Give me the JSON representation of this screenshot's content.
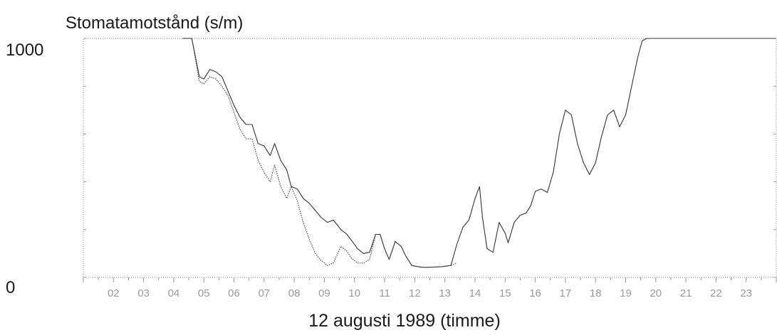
{
  "chart_data": {
    "type": "line",
    "ylabel": "Stomatamotstånd (s/m)",
    "xlabel": "12 augusti 1989 (timme)",
    "ylim": [
      0,
      1000
    ],
    "xlim": [
      1,
      24
    ],
    "y_tick_labels": [
      {
        "value": 1000,
        "label": "1000"
      },
      {
        "value": 0,
        "label": "0"
      }
    ],
    "x_tick_labels": [
      "02",
      "03",
      "04",
      "05",
      "06",
      "07",
      "08",
      "09",
      "10",
      "11",
      "12",
      "13",
      "14",
      "15",
      "16",
      "17",
      "18",
      "19",
      "20",
      "21",
      "22",
      "23"
    ],
    "grid": false,
    "series": [
      {
        "style": "solid",
        "color": "#333333",
        "x": [
          4.3,
          4.6,
          4.85,
          5.0,
          5.2,
          5.4,
          5.6,
          5.8,
          6.0,
          6.2,
          6.4,
          6.6,
          6.8,
          7.0,
          7.2,
          7.35,
          7.55,
          7.75,
          7.9,
          8.1,
          8.3,
          8.5,
          8.7,
          8.9,
          9.1,
          9.3,
          9.55,
          9.75,
          9.9,
          10.1,
          10.3,
          10.5,
          10.7,
          10.85,
          11.0,
          11.15,
          11.35,
          11.55,
          11.7,
          11.9,
          12.1,
          12.3,
          12.6,
          12.9,
          13.2,
          13.4,
          13.6,
          13.8,
          14.0,
          14.15,
          14.25,
          14.4,
          14.6,
          14.8,
          15.0,
          15.1,
          15.3,
          15.5,
          15.7,
          15.85,
          16.0,
          16.2,
          16.4,
          16.6,
          16.8,
          17.0,
          17.2,
          17.4,
          17.6,
          17.8,
          18.0,
          18.2,
          18.4,
          18.6,
          18.8,
          19.0,
          19.2,
          19.4,
          19.55,
          19.7,
          20.0,
          24.0
        ],
        "y": [
          1000,
          1000,
          840,
          830,
          870,
          860,
          840,
          780,
          720,
          670,
          640,
          640,
          560,
          550,
          510,
          560,
          490,
          450,
          380,
          370,
          330,
          310,
          280,
          250,
          230,
          240,
          200,
          180,
          155,
          120,
          100,
          105,
          180,
          180,
          120,
          75,
          150,
          130,
          90,
          50,
          45,
          42,
          43,
          45,
          50,
          140,
          210,
          240,
          330,
          380,
          250,
          120,
          105,
          230,
          185,
          145,
          230,
          260,
          270,
          300,
          360,
          370,
          355,
          440,
          600,
          700,
          680,
          560,
          480,
          430,
          480,
          590,
          680,
          700,
          630,
          680,
          800,
          920,
          990,
          1000,
          1000,
          1000
        ]
      },
      {
        "style": "dotted",
        "color": "#4a4a4a",
        "x": [
          4.3,
          4.6,
          4.85,
          5.0,
          5.2,
          5.4,
          5.6,
          5.8,
          6.0,
          6.2,
          6.4,
          6.6,
          6.8,
          7.0,
          7.2,
          7.35,
          7.55,
          7.75,
          7.9,
          8.1,
          8.3,
          8.5,
          8.7,
          8.9,
          9.1,
          9.3,
          9.55,
          9.75,
          9.9,
          10.1,
          10.3,
          10.5,
          10.7,
          10.85,
          11.0,
          11.15,
          11.35,
          11.55,
          11.7,
          11.9,
          12.1,
          12.3,
          12.6,
          12.9,
          13.2,
          13.4
        ],
        "y": [
          1000,
          1000,
          820,
          810,
          840,
          830,
          800,
          760,
          690,
          620,
          580,
          580,
          490,
          440,
          400,
          470,
          380,
          330,
          380,
          320,
          230,
          160,
          100,
          70,
          50,
          60,
          130,
          110,
          80,
          60,
          60,
          75,
          180,
          180,
          120,
          75,
          150,
          130,
          90,
          50,
          45,
          42,
          43,
          45,
          50,
          60
        ]
      }
    ]
  }
}
